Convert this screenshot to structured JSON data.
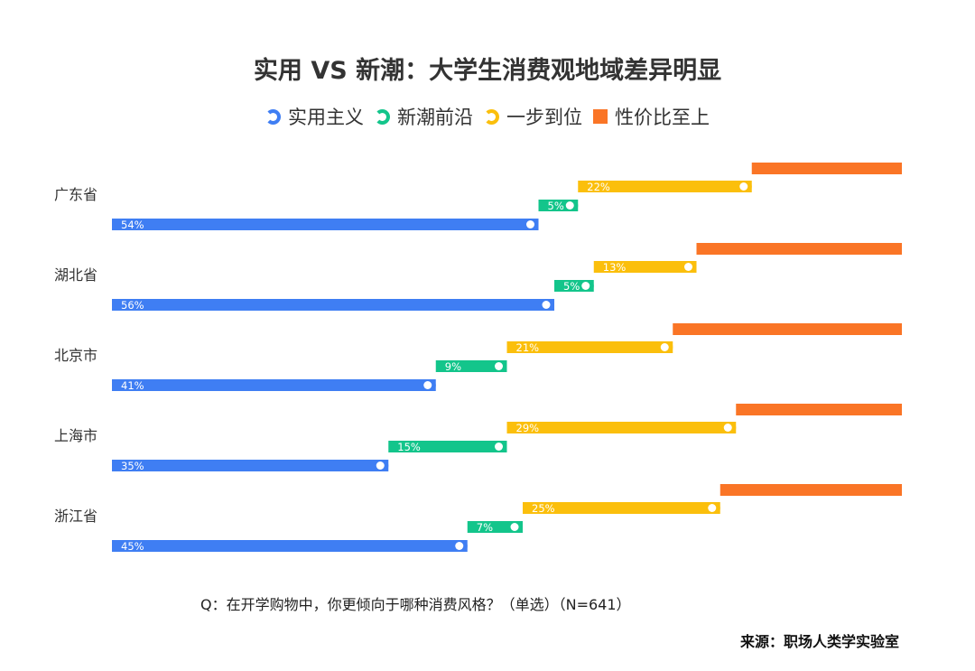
{
  "chart_data": {
    "type": "bar",
    "stacked": true,
    "orientation": "horizontal",
    "title": "实用 VS 新潮：大学生消费观地域差异明显",
    "categories": [
      "广东省",
      "湖北省",
      "北京市",
      "上海市",
      "浙江省"
    ],
    "series": [
      {
        "name": "实用主义",
        "color": "#3f7ef3",
        "values": [
          54,
          56,
          41,
          35,
          45
        ],
        "labels": [
          "54%",
          "56%",
          "41%",
          "35%",
          "45%"
        ]
      },
      {
        "name": "新潮前沿",
        "color": "#13c58b",
        "values": [
          5,
          5,
          9,
          15,
          7
        ],
        "labels": [
          "5%",
          "5%",
          "9%",
          "15%",
          "7%"
        ]
      },
      {
        "name": "一步到位",
        "color": "#fbbf0c",
        "values": [
          22,
          13,
          21,
          29,
          25
        ],
        "labels": [
          "22%",
          "13%",
          "21%",
          "29%",
          "25%"
        ]
      },
      {
        "name": "性价比至上",
        "color": "#fa7526",
        "values": [
          19,
          26,
          29,
          21,
          23
        ]
      }
    ],
    "xlim": [
      0,
      100
    ],
    "grid": false,
    "legend": "top"
  },
  "footer": {
    "question": "Q：在开学购物中，你更倾向于哪种消费风格？（单选）（N=641）",
    "source": "来源：职场人类学实验室"
  }
}
